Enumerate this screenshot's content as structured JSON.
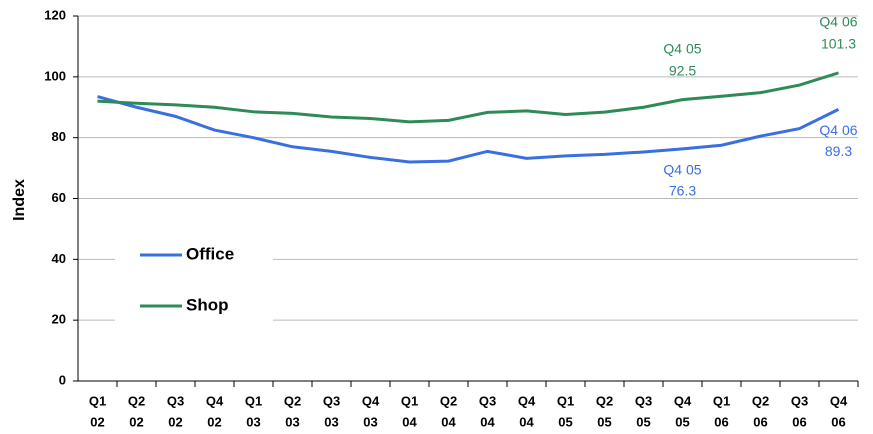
{
  "chart_data": {
    "type": "line",
    "y_label": "Index",
    "categories": [
      [
        "Q1",
        "02"
      ],
      [
        "Q2",
        "02"
      ],
      [
        "Q3",
        "02"
      ],
      [
        "Q4",
        "02"
      ],
      [
        "Q1",
        "03"
      ],
      [
        "Q2",
        "03"
      ],
      [
        "Q3",
        "03"
      ],
      [
        "Q4",
        "03"
      ],
      [
        "Q1",
        "04"
      ],
      [
        "Q2",
        "04"
      ],
      [
        "Q3",
        "04"
      ],
      [
        "Q4",
        "04"
      ],
      [
        "Q1",
        "05"
      ],
      [
        "Q2",
        "05"
      ],
      [
        "Q3",
        "05"
      ],
      [
        "Q4",
        "05"
      ],
      [
        "Q1",
        "06"
      ],
      [
        "Q2",
        "06"
      ],
      [
        "Q3",
        "06"
      ],
      [
        "Q4",
        "06"
      ]
    ],
    "series": [
      {
        "name": "Office",
        "color": "#3a6fe0",
        "values": [
          93.5,
          90,
          87,
          82.5,
          80,
          77,
          75.5,
          73.5,
          72,
          72.3,
          75.5,
          73.2,
          74,
          74.5,
          75.3,
          76.3,
          77.5,
          80.5,
          83,
          89.3
        ],
        "point_labels": [
          null,
          null,
          null,
          null,
          null,
          null,
          null,
          null,
          null,
          null,
          null,
          null,
          null,
          null,
          null,
          "Q4 05",
          null,
          null,
          null,
          "Q4 06"
        ]
      },
      {
        "name": "Shop",
        "color": "#2e8b57",
        "values": [
          92,
          91.3,
          90.8,
          90,
          88.5,
          88,
          86.8,
          86.3,
          85.2,
          85.7,
          88.3,
          88.8,
          87.6,
          88.4,
          90,
          92.5,
          93.6,
          94.8,
          97.3,
          101.3
        ],
        "point_labels": [
          null,
          null,
          null,
          null,
          null,
          null,
          null,
          null,
          null,
          null,
          null,
          null,
          null,
          null,
          null,
          "Q4 05",
          null,
          null,
          null,
          "Q4 06"
        ]
      }
    ],
    "ylim": [
      0,
      120
    ],
    "yticks": [
      0,
      20,
      40,
      60,
      80,
      100,
      120
    ],
    "grid": true
  }
}
